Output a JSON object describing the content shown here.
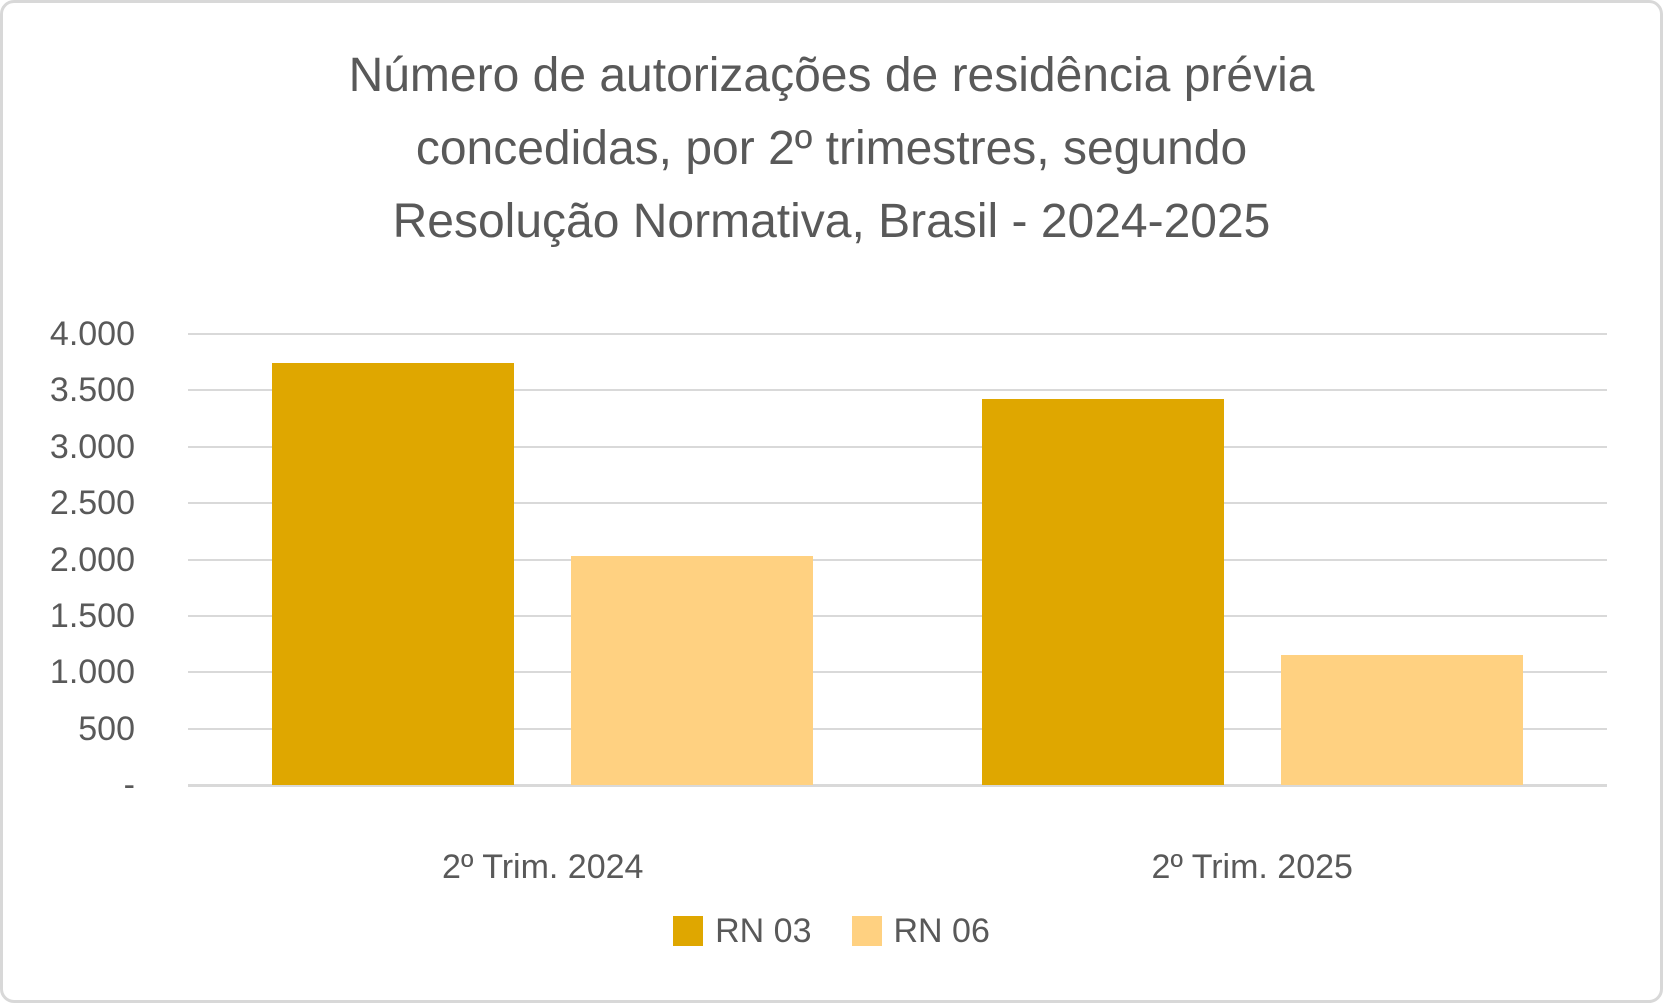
{
  "window": {
    "background": "#FFFFFF",
    "border_color": "#D8D8D8"
  },
  "chart_data": {
    "type": "bar",
    "title": "Número de autorizações de residência prévia concedidas, por 2º trimestres, segundo Resolução Normativa, Brasil - 2024-2025",
    "title_lines": [
      "Número de autorizações de residência prévia",
      "concedidas, por 2º trimestres, segundo",
      "Resolução Normativa, Brasil - 2024-2025"
    ],
    "categories": [
      "2º Trim. 2024",
      "2º Trim. 2025"
    ],
    "series": [
      {
        "name": "RN 03",
        "color": "#DFA700",
        "values": [
          3740,
          3420
        ]
      },
      {
        "name": "RN 06",
        "color": "#FFD181",
        "values": [
          2030,
          1150
        ]
      }
    ],
    "ylim": [
      0,
      4000
    ],
    "ytick_step": 500,
    "ytick_labels_bottom_to_top": [
      "-",
      "500",
      "1.000",
      "1.500",
      "2.000",
      "2.500",
      "3.000",
      "3.500",
      "4.000"
    ],
    "xlabel": "",
    "ylabel": "",
    "grid": true,
    "legend_position": "bottom",
    "text_color": "#595959",
    "gridline_color": "#D9D9D9"
  }
}
